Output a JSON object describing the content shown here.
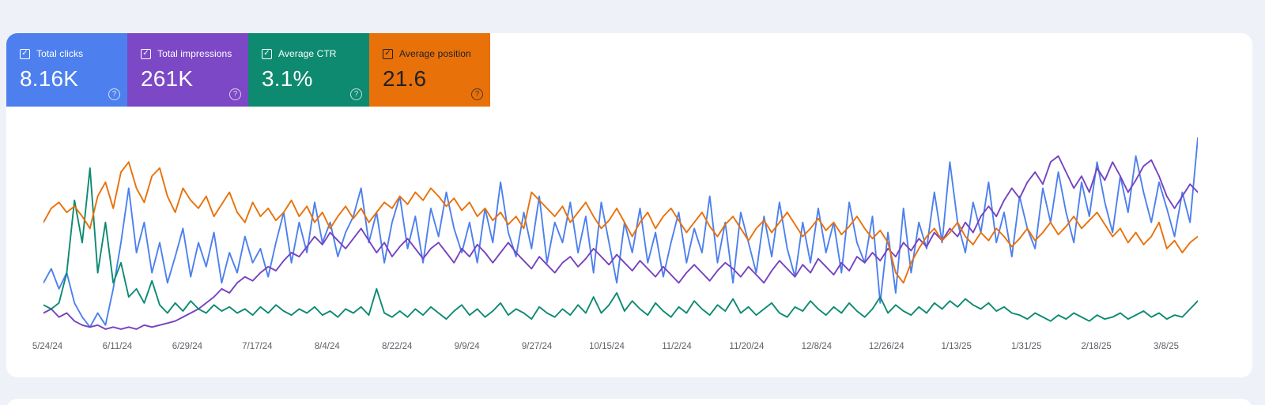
{
  "icons": {
    "check": "✓",
    "help": "?"
  },
  "colors": {
    "page_background": "#eef1f8",
    "panel_background": "#ffffff",
    "axis_label": "#5f6368",
    "clicks": "#4d80ee",
    "impressions": "#7642c0",
    "ctr": "#0d8a72",
    "position": "#e8710a",
    "dark_text": "#202124"
  },
  "cards": [
    {
      "id": "clicks",
      "label": "Total clicks",
      "value": "8.16K",
      "bg": "#4d80ee",
      "text": "#ffffff",
      "checked": true
    },
    {
      "id": "impressions",
      "label": "Total impressions",
      "value": "261K",
      "bg": "#7c48c6",
      "text": "#ffffff",
      "checked": true
    },
    {
      "id": "ctr",
      "label": "Average CTR",
      "value": "3.1%",
      "bg": "#0d8a70",
      "text": "#ffffff",
      "checked": true
    },
    {
      "id": "position",
      "label": "Average position",
      "value": "21.6",
      "bg": "#e8710a",
      "text": "#202124",
      "checked": true
    }
  ],
  "chart_data": {
    "type": "line",
    "grid": false,
    "y_axis_visible": false,
    "legend_position": "top-cards",
    "value_encoding": "normalized 0-1 per series (chart displays no y-axis; each metric independently scaled)",
    "x_tick_labels": [
      "5/24/24",
      "6/11/24",
      "6/29/24",
      "7/17/24",
      "8/4/24",
      "8/22/24",
      "9/9/24",
      "9/27/24",
      "10/15/24",
      "11/2/24",
      "11/20/24",
      "12/8/24",
      "12/26/24",
      "1/13/25",
      "1/31/25",
      "2/18/25",
      "3/8/25"
    ],
    "series": [
      {
        "id": "clicks",
        "name": "Total clicks",
        "color": "#4d80ee",
        "total": "8.16K",
        "values": [
          0.25,
          0.32,
          0.22,
          0.3,
          0.15,
          0.08,
          0.03,
          0.1,
          0.04,
          0.22,
          0.45,
          0.72,
          0.4,
          0.55,
          0.3,
          0.45,
          0.25,
          0.38,
          0.52,
          0.28,
          0.45,
          0.33,
          0.5,
          0.25,
          0.4,
          0.3,
          0.48,
          0.35,
          0.42,
          0.28,
          0.45,
          0.6,
          0.35,
          0.55,
          0.4,
          0.65,
          0.45,
          0.55,
          0.38,
          0.5,
          0.58,
          0.72,
          0.45,
          0.6,
          0.35,
          0.55,
          0.68,
          0.42,
          0.58,
          0.35,
          0.62,
          0.48,
          0.7,
          0.52,
          0.4,
          0.55,
          0.35,
          0.62,
          0.45,
          0.75,
          0.5,
          0.38,
          0.6,
          0.42,
          0.68,
          0.35,
          0.55,
          0.45,
          0.65,
          0.4,
          0.58,
          0.3,
          0.65,
          0.45,
          0.25,
          0.55,
          0.4,
          0.62,
          0.35,
          0.5,
          0.28,
          0.45,
          0.6,
          0.35,
          0.52,
          0.4,
          0.68,
          0.35,
          0.55,
          0.25,
          0.6,
          0.45,
          0.3,
          0.58,
          0.38,
          0.65,
          0.42,
          0.28,
          0.55,
          0.35,
          0.62,
          0.4,
          0.55,
          0.3,
          0.65,
          0.45,
          0.35,
          0.58,
          0.15,
          0.5,
          0.2,
          0.62,
          0.3,
          0.55,
          0.42,
          0.7,
          0.45,
          0.85,
          0.55,
          0.4,
          0.65,
          0.5,
          0.75,
          0.45,
          0.6,
          0.38,
          0.68,
          0.52,
          0.42,
          0.72,
          0.55,
          0.8,
          0.6,
          0.45,
          0.75,
          0.58,
          0.85,
          0.65,
          0.5,
          0.78,
          0.6,
          0.88,
          0.7,
          0.55,
          0.75,
          0.62,
          0.48,
          0.7,
          0.55,
          0.97
        ]
      },
      {
        "id": "impressions",
        "name": "Total impressions",
        "color": "#7642c0",
        "total": "261K",
        "values": [
          0.1,
          0.12,
          0.08,
          0.1,
          0.06,
          0.04,
          0.03,
          0.04,
          0.02,
          0.03,
          0.02,
          0.03,
          0.02,
          0.04,
          0.03,
          0.04,
          0.05,
          0.06,
          0.08,
          0.1,
          0.12,
          0.15,
          0.18,
          0.22,
          0.2,
          0.25,
          0.28,
          0.26,
          0.3,
          0.33,
          0.31,
          0.36,
          0.4,
          0.38,
          0.43,
          0.48,
          0.44,
          0.5,
          0.46,
          0.42,
          0.47,
          0.52,
          0.46,
          0.4,
          0.45,
          0.38,
          0.43,
          0.47,
          0.42,
          0.37,
          0.42,
          0.45,
          0.4,
          0.35,
          0.42,
          0.38,
          0.44,
          0.4,
          0.35,
          0.4,
          0.45,
          0.4,
          0.36,
          0.32,
          0.38,
          0.34,
          0.3,
          0.35,
          0.38,
          0.33,
          0.37,
          0.42,
          0.38,
          0.34,
          0.39,
          0.35,
          0.31,
          0.36,
          0.32,
          0.28,
          0.33,
          0.29,
          0.25,
          0.3,
          0.34,
          0.3,
          0.26,
          0.31,
          0.35,
          0.32,
          0.28,
          0.33,
          0.29,
          0.25,
          0.31,
          0.36,
          0.32,
          0.28,
          0.34,
          0.3,
          0.37,
          0.33,
          0.29,
          0.35,
          0.31,
          0.38,
          0.35,
          0.4,
          0.36,
          0.42,
          0.38,
          0.45,
          0.41,
          0.47,
          0.43,
          0.5,
          0.46,
          0.52,
          0.48,
          0.55,
          0.5,
          0.58,
          0.63,
          0.58,
          0.66,
          0.72,
          0.67,
          0.75,
          0.8,
          0.74,
          0.85,
          0.88,
          0.8,
          0.72,
          0.78,
          0.7,
          0.82,
          0.76,
          0.85,
          0.78,
          0.7,
          0.76,
          0.83,
          0.86,
          0.78,
          0.68,
          0.62,
          0.68,
          0.74,
          0.7
        ]
      },
      {
        "id": "ctr",
        "name": "Average CTR",
        "color": "#0d8a72",
        "average": "3.1%",
        "values": [
          0.14,
          0.12,
          0.15,
          0.3,
          0.66,
          0.45,
          0.82,
          0.3,
          0.55,
          0.25,
          0.35,
          0.18,
          0.22,
          0.15,
          0.26,
          0.14,
          0.1,
          0.15,
          0.11,
          0.16,
          0.12,
          0.1,
          0.14,
          0.11,
          0.13,
          0.1,
          0.12,
          0.09,
          0.13,
          0.1,
          0.14,
          0.11,
          0.09,
          0.12,
          0.1,
          0.13,
          0.09,
          0.11,
          0.08,
          0.12,
          0.1,
          0.13,
          0.09,
          0.22,
          0.1,
          0.08,
          0.11,
          0.08,
          0.12,
          0.09,
          0.13,
          0.1,
          0.07,
          0.11,
          0.14,
          0.09,
          0.12,
          0.08,
          0.11,
          0.15,
          0.09,
          0.12,
          0.1,
          0.07,
          0.13,
          0.1,
          0.08,
          0.12,
          0.09,
          0.14,
          0.1,
          0.18,
          0.1,
          0.14,
          0.2,
          0.11,
          0.16,
          0.12,
          0.09,
          0.15,
          0.11,
          0.08,
          0.13,
          0.1,
          0.16,
          0.12,
          0.09,
          0.14,
          0.11,
          0.17,
          0.1,
          0.13,
          0.09,
          0.12,
          0.15,
          0.1,
          0.08,
          0.13,
          0.11,
          0.16,
          0.12,
          0.09,
          0.13,
          0.1,
          0.15,
          0.11,
          0.08,
          0.12,
          0.18,
          0.1,
          0.14,
          0.11,
          0.09,
          0.13,
          0.1,
          0.15,
          0.12,
          0.16,
          0.13,
          0.17,
          0.14,
          0.12,
          0.15,
          0.11,
          0.13,
          0.1,
          0.09,
          0.07,
          0.1,
          0.08,
          0.06,
          0.09,
          0.07,
          0.1,
          0.08,
          0.06,
          0.09,
          0.07,
          0.08,
          0.1,
          0.07,
          0.09,
          0.11,
          0.08,
          0.1,
          0.07,
          0.09,
          0.08,
          0.12,
          0.16
        ]
      },
      {
        "id": "position",
        "name": "Average position",
        "color": "#e8710a",
        "average": "21.6",
        "values": [
          0.55,
          0.62,
          0.65,
          0.6,
          0.63,
          0.58,
          0.52,
          0.68,
          0.75,
          0.62,
          0.8,
          0.85,
          0.72,
          0.65,
          0.78,
          0.82,
          0.68,
          0.6,
          0.72,
          0.66,
          0.62,
          0.68,
          0.58,
          0.64,
          0.7,
          0.6,
          0.55,
          0.65,
          0.58,
          0.62,
          0.56,
          0.6,
          0.66,
          0.58,
          0.63,
          0.55,
          0.6,
          0.52,
          0.58,
          0.63,
          0.57,
          0.62,
          0.55,
          0.6,
          0.65,
          0.62,
          0.68,
          0.64,
          0.7,
          0.66,
          0.72,
          0.68,
          0.63,
          0.67,
          0.61,
          0.65,
          0.58,
          0.62,
          0.56,
          0.6,
          0.54,
          0.58,
          0.52,
          0.7,
          0.66,
          0.62,
          0.58,
          0.63,
          0.55,
          0.6,
          0.65,
          0.58,
          0.52,
          0.56,
          0.62,
          0.55,
          0.48,
          0.55,
          0.6,
          0.52,
          0.58,
          0.62,
          0.56,
          0.5,
          0.55,
          0.6,
          0.53,
          0.48,
          0.54,
          0.58,
          0.52,
          0.46,
          0.52,
          0.56,
          0.5,
          0.55,
          0.6,
          0.54,
          0.48,
          0.52,
          0.57,
          0.51,
          0.55,
          0.49,
          0.53,
          0.58,
          0.52,
          0.47,
          0.51,
          0.45,
          0.3,
          0.25,
          0.35,
          0.42,
          0.48,
          0.52,
          0.46,
          0.5,
          0.55,
          0.48,
          0.44,
          0.5,
          0.46,
          0.52,
          0.48,
          0.43,
          0.47,
          0.52,
          0.46,
          0.5,
          0.55,
          0.49,
          0.53,
          0.58,
          0.52,
          0.56,
          0.6,
          0.54,
          0.48,
          0.52,
          0.45,
          0.5,
          0.44,
          0.48,
          0.55,
          0.42,
          0.46,
          0.4,
          0.45,
          0.48
        ]
      }
    ]
  }
}
